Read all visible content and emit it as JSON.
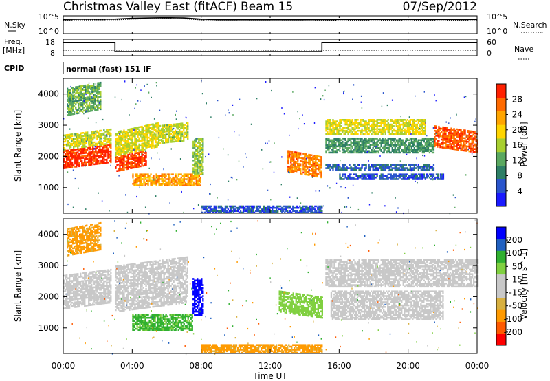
{
  "header": {
    "station": "Christmas Valley East (fitACF)",
    "beam": "Beam 15",
    "date": "07/Sep/2012"
  },
  "strip_nsky": {
    "left_label": "N.Sky",
    "right_label": "N.Search",
    "left_ticks": [
      "10^5",
      "10^0"
    ],
    "right_ticks": [
      "10^5",
      "10^0"
    ]
  },
  "strip_freq": {
    "left_label_1": "Freq.",
    "left_label_2": "[MHz]",
    "right_label": "Nave",
    "left_ticks": [
      "18",
      "8"
    ],
    "right_ticks": [
      "60",
      "0"
    ]
  },
  "cpid": {
    "label": "CPID",
    "value": "normal (fast) 151 IF"
  },
  "axes": {
    "ylabel": "Slant Range [km]",
    "xlabel": "Time UT",
    "x_ticks": [
      "00:00",
      "04:00",
      "08:00",
      "12:00",
      "16:00",
      "20:00",
      "00:00"
    ],
    "y_ticks": [
      "1000",
      "2000",
      "3000",
      "4000"
    ]
  },
  "colors": {
    "power": [
      "#1a1aff",
      "#2a55cc",
      "#2e7f66",
      "#5aa860",
      "#a8cf30",
      "#ffd500",
      "#ffa500",
      "#ff6a00",
      "#ff2000"
    ],
    "velocity": [
      "#ff0000",
      "#ff5a00",
      "#ff9a00",
      "#d8b040",
      "#c8c8c8",
      "#c8c8c8",
      "#80d040",
      "#30b030",
      "#2060c0",
      "#0000ff"
    ]
  },
  "chart_data": [
    {
      "type": "line",
      "name": "n-sky-n-search",
      "x_range_hours": [
        0,
        24
      ],
      "x_time": [
        0,
        1,
        2,
        3,
        4,
        5,
        6,
        7,
        8,
        9,
        10,
        11,
        12,
        13,
        14,
        15,
        16,
        17,
        18,
        19,
        20,
        21,
        22,
        23,
        24
      ],
      "series": [
        {
          "name": "N.Sky",
          "values": [
            10000,
            11000,
            12000,
            12000,
            20000,
            25000,
            30000,
            25000,
            12000,
            8000,
            8000,
            8000,
            8000,
            8000,
            8000,
            9000,
            10000,
            10000,
            10000,
            10000,
            10000,
            10000,
            10000,
            10000,
            10000
          ]
        },
        {
          "name": "N.Search",
          "values": [
            6000,
            6500,
            7000,
            7000,
            12000,
            14000,
            16000,
            14000,
            7000,
            4000,
            4000,
            4000,
            4000,
            4000,
            4000,
            5000,
            6000,
            6000,
            6000,
            6000,
            6000,
            6000,
            6000,
            6000,
            6000
          ]
        }
      ],
      "ylim": [
        1,
        100000
      ],
      "yscale": "log"
    },
    {
      "type": "line",
      "name": "freq-nave",
      "x_range_hours": [
        0,
        24
      ],
      "series": [
        {
          "name": "Freq.",
          "x_time": [
            0,
            3,
            3,
            15,
            15,
            24
          ],
          "values": [
            16,
            16,
            10.5,
            10.5,
            16,
            16
          ]
        },
        {
          "name": "Nave",
          "x_time": [
            0,
            24
          ],
          "values": [
            20,
            20
          ]
        }
      ],
      "ylim_freq": [
        8,
        18
      ],
      "ylim_nave": [
        0,
        60
      ]
    },
    {
      "type": "heatmap",
      "name": "power",
      "colorbar": {
        "label": "Power [dB]",
        "ticks": [
          "4",
          "8",
          "12",
          "16",
          "20",
          "24",
          "28"
        ],
        "range": [
          0,
          30
        ]
      },
      "xlim_hours": [
        0,
        24
      ],
      "ylim_km": [
        180,
        4500
      ],
      "features": [
        {
          "t0": 0.0,
          "t1": 2.8,
          "r0": 1600,
          "r1": 2200,
          "slope": 200,
          "value": 28
        },
        {
          "t0": 0.0,
          "t1": 2.8,
          "r0": 2200,
          "r1": 2700,
          "slope": 200,
          "value": 16
        },
        {
          "t0": 0.2,
          "t1": 2.2,
          "r0": 3300,
          "r1": 4200,
          "slope": 200,
          "value": 12
        },
        {
          "t0": 3.0,
          "t1": 4.8,
          "r0": 1500,
          "r1": 2000,
          "slope": 200,
          "value": 27
        },
        {
          "t0": 3.0,
          "t1": 5.5,
          "r0": 2000,
          "r1": 2800,
          "slope": 300,
          "value": 17
        },
        {
          "t0": 5.5,
          "t1": 7.2,
          "r0": 2400,
          "r1": 3000,
          "slope": 100,
          "value": 16
        },
        {
          "t0": 4.0,
          "t1": 8.0,
          "r0": 1050,
          "r1": 1450,
          "slope": 0,
          "value": 22
        },
        {
          "t0": 7.5,
          "t1": 8.1,
          "r0": 1400,
          "r1": 2600,
          "slope": 0,
          "value": 14
        },
        {
          "t0": 8.0,
          "t1": 15.0,
          "r0": 180,
          "r1": 420,
          "slope": 0,
          "value": 5
        },
        {
          "t0": 13.0,
          "t1": 15.0,
          "r0": 1500,
          "r1": 2200,
          "slope": -200,
          "value": 24
        },
        {
          "t0": 15.2,
          "t1": 21.0,
          "r0": 2700,
          "r1": 3200,
          "slope": 0,
          "value": 17
        },
        {
          "t0": 15.2,
          "t1": 21.5,
          "r0": 2100,
          "r1": 2600,
          "slope": 0,
          "value": 10
        },
        {
          "t0": 15.2,
          "t1": 21.5,
          "r0": 1550,
          "r1": 1750,
          "slope": 0,
          "value": 6
        },
        {
          "t0": 16.0,
          "t1": 22.0,
          "r0": 1250,
          "r1": 1450,
          "slope": 0,
          "value": 5
        },
        {
          "t0": 21.5,
          "t1": 24.0,
          "r0": 2300,
          "r1": 3000,
          "slope": -200,
          "value": 26
        }
      ]
    },
    {
      "type": "heatmap",
      "name": "velocity",
      "colorbar": {
        "label": "Velocity [m s^-1]",
        "ticks": [
          "-200",
          "-100",
          "-50",
          "-15",
          "15",
          "50",
          "100",
          "200"
        ],
        "range": [
          -250,
          250
        ]
      },
      "xlim_hours": [
        0,
        24
      ],
      "ylim_km": [
        180,
        4500
      ],
      "features": [
        {
          "t0": 0.0,
          "t1": 2.8,
          "r0": 1600,
          "r1": 2700,
          "slope": 200,
          "value": 0
        },
        {
          "t0": 0.2,
          "t1": 2.2,
          "r0": 3300,
          "r1": 4200,
          "slope": 200,
          "value": -60
        },
        {
          "t0": 3.0,
          "t1": 7.2,
          "r0": 1500,
          "r1": 3000,
          "slope": 300,
          "value": 0
        },
        {
          "t0": 4.0,
          "t1": 7.5,
          "r0": 900,
          "r1": 1450,
          "slope": 0,
          "value": 60
        },
        {
          "t0": 7.5,
          "t1": 8.1,
          "r0": 1400,
          "r1": 2600,
          "slope": 0,
          "value": 220
        },
        {
          "t0": 8.0,
          "t1": 15.0,
          "r0": 180,
          "r1": 450,
          "slope": 0,
          "value": -60
        },
        {
          "t0": 12.5,
          "t1": 15.0,
          "r0": 1500,
          "r1": 2200,
          "slope": -200,
          "value": 30
        },
        {
          "t0": 15.2,
          "t1": 24.0,
          "r0": 2300,
          "r1": 3200,
          "slope": 0,
          "value": 0
        },
        {
          "t0": 15.5,
          "t1": 22.0,
          "r0": 1250,
          "r1": 2200,
          "slope": 0,
          "value": 0
        }
      ]
    }
  ]
}
